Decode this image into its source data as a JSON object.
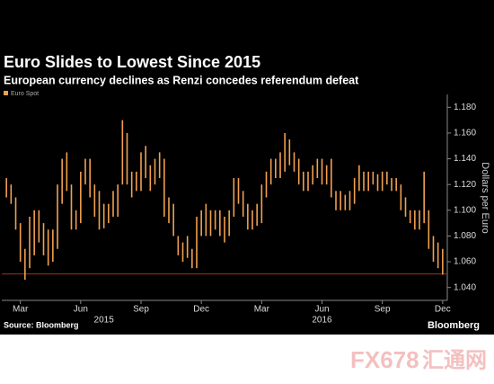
{
  "chart_data": {
    "type": "range",
    "title": "Euro Slides to Lowest Since 2015",
    "subtitle": "European currency declines as Renzi concedes referendum defeat",
    "source": "Source: Bloomberg",
    "brand": "Bloomberg",
    "watermark": [
      "FX678",
      "汇通网"
    ],
    "y_axis_label": "Dollars per Euro",
    "series": [
      {
        "name": "Euro Spot",
        "color": "#f0a050",
        "x": [
          0,
          1,
          2,
          3,
          4,
          5,
          6,
          7,
          8,
          9,
          10,
          11,
          12,
          13,
          14,
          15,
          16,
          17,
          18,
          19,
          20,
          21,
          22,
          23,
          24,
          25,
          26,
          27,
          28,
          29,
          30,
          31,
          32,
          33,
          34,
          35,
          36,
          37,
          38,
          39,
          40,
          41,
          42,
          43,
          44,
          45,
          46,
          47,
          48,
          49,
          50,
          51,
          52,
          53,
          54,
          55,
          56,
          57,
          58,
          59,
          60,
          61,
          62,
          63,
          64,
          65,
          66,
          67,
          68,
          69,
          70,
          71,
          72,
          73,
          74,
          75,
          76,
          77,
          78,
          79,
          80,
          81,
          82,
          83,
          84,
          85,
          86,
          87,
          88,
          89,
          90,
          91,
          92,
          93,
          94
        ],
        "high": [
          1.125,
          1.12,
          1.11,
          1.09,
          1.07,
          1.095,
          1.1,
          1.1,
          1.09,
          1.085,
          1.085,
          1.12,
          1.14,
          1.145,
          1.12,
          1.1,
          1.13,
          1.14,
          1.14,
          1.12,
          1.115,
          1.105,
          1.105,
          1.115,
          1.12,
          1.17,
          1.16,
          1.13,
          1.13,
          1.145,
          1.15,
          1.135,
          1.14,
          1.145,
          1.14,
          1.11,
          1.105,
          1.08,
          1.075,
          1.08,
          1.07,
          1.095,
          1.1,
          1.105,
          1.1,
          1.1,
          1.1,
          1.095,
          1.1,
          1.125,
          1.125,
          1.115,
          1.105,
          1.1,
          1.105,
          1.12,
          1.13,
          1.14,
          1.14,
          1.145,
          1.16,
          1.155,
          1.145,
          1.14,
          1.13,
          1.13,
          1.135,
          1.14,
          1.14,
          1.135,
          1.14,
          1.115,
          1.115,
          1.112,
          1.115,
          1.125,
          1.135,
          1.13,
          1.13,
          1.13,
          1.128,
          1.13,
          1.13,
          1.125,
          1.125,
          1.12,
          1.11,
          1.1,
          1.1,
          1.1,
          1.13,
          1.1,
          1.08,
          1.075,
          1.07
        ],
        "low": [
          1.11,
          1.105,
          1.085,
          1.06,
          1.046,
          1.055,
          1.065,
          1.075,
          1.065,
          1.057,
          1.06,
          1.07,
          1.105,
          1.115,
          1.085,
          1.085,
          1.09,
          1.12,
          1.11,
          1.095,
          1.085,
          1.086,
          1.09,
          1.095,
          1.095,
          1.12,
          1.12,
          1.11,
          1.115,
          1.115,
          1.125,
          1.115,
          1.12,
          1.125,
          1.095,
          1.09,
          1.08,
          1.065,
          1.06,
          1.063,
          1.055,
          1.055,
          1.08,
          1.08,
          1.08,
          1.085,
          1.08,
          1.075,
          1.08,
          1.095,
          1.105,
          1.095,
          1.085,
          1.085,
          1.088,
          1.09,
          1.11,
          1.12,
          1.125,
          1.125,
          1.13,
          1.135,
          1.13,
          1.12,
          1.115,
          1.115,
          1.12,
          1.125,
          1.12,
          1.12,
          1.11,
          1.1,
          1.1,
          1.1,
          1.1,
          1.105,
          1.115,
          1.115,
          1.115,
          1.12,
          1.115,
          1.115,
          1.12,
          1.115,
          1.115,
          1.1,
          1.095,
          1.09,
          1.085,
          1.085,
          1.09,
          1.07,
          1.06,
          1.055,
          1.05
        ]
      }
    ],
    "hline": 1.0505,
    "xlim": [
      -1,
      95
    ],
    "xticks": [
      {
        "value": 3,
        "label": "Mar"
      },
      {
        "value": 16,
        "label": "Jun"
      },
      {
        "value": 29,
        "label": "Sep"
      },
      {
        "value": 42,
        "label": "Dec"
      },
      {
        "value": 55,
        "label": "Mar"
      },
      {
        "value": 68,
        "label": "Jun"
      },
      {
        "value": 81,
        "label": "Sep"
      },
      {
        "value": 94,
        "label": "Dec"
      }
    ],
    "year_labels": [
      {
        "value": 21,
        "label": "2015"
      },
      {
        "value": 68,
        "label": "2016"
      }
    ],
    "ylim": [
      1.03,
      1.19
    ],
    "yticks": [
      {
        "value": 1.04,
        "label": "1.040"
      },
      {
        "value": 1.06,
        "label": "1.060"
      },
      {
        "value": 1.08,
        "label": "1.080"
      },
      {
        "value": 1.1,
        "label": "1.100"
      },
      {
        "value": 1.12,
        "label": "1.120"
      },
      {
        "value": 1.14,
        "label": "1.140"
      },
      {
        "value": 1.16,
        "label": "1.160"
      },
      {
        "value": 1.18,
        "label": "1.180"
      }
    ]
  }
}
